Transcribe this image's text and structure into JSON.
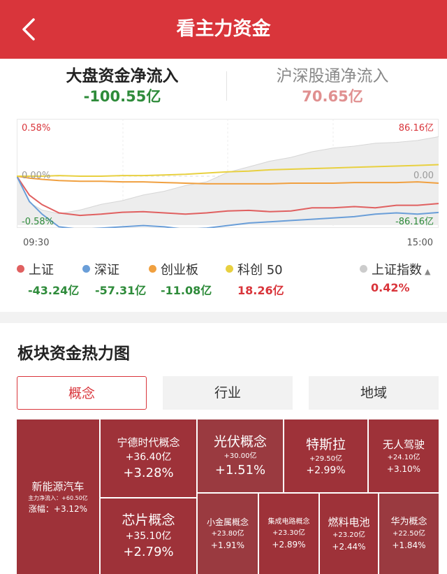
{
  "header": {
    "title": "看主力资金"
  },
  "tabs": {
    "left": {
      "label": "大盘资金净流入",
      "value": "-100.55亿"
    },
    "right": {
      "label": "沪深股通净流入",
      "value": "70.65亿"
    }
  },
  "chart_axes": {
    "left_top": "0.58%",
    "left_mid": "0.00%",
    "left_bottom": "-0.58%",
    "right_top": "86.16亿",
    "right_mid": "0.00",
    "right_bottom": "-86.16亿",
    "time_start": "09:30",
    "time_end": "15:00"
  },
  "chart_data": {
    "type": "line",
    "title": "",
    "xlabel": "",
    "ylabel": "",
    "x": [
      0,
      0.03,
      0.06,
      0.1,
      0.15,
      0.2,
      0.25,
      0.3,
      0.35,
      0.4,
      0.45,
      0.5,
      0.55,
      0.6,
      0.65,
      0.7,
      0.75,
      0.8,
      0.85,
      0.9,
      0.95,
      1.0
    ],
    "ylim_right": [
      -86.16,
      86.16
    ],
    "ylim_left": [
      -0.58,
      0.58
    ],
    "series": [
      {
        "name": "上证",
        "color": "#e06060",
        "values": [
          0,
          -30,
          -45,
          -58,
          -62,
          -60,
          -57,
          -56,
          -58,
          -60,
          -58,
          -55,
          -54,
          -56,
          -55,
          -50,
          -50,
          -48,
          -50,
          -46,
          -46,
          -43.24
        ]
      },
      {
        "name": "深证",
        "color": "#6a9ed8",
        "values": [
          0,
          -40,
          -60,
          -80,
          -84,
          -82,
          -80,
          -78,
          -80,
          -84,
          -82,
          -78,
          -74,
          -72,
          -70,
          -68,
          -66,
          -64,
          -60,
          -58,
          -60,
          -57.31
        ]
      },
      {
        "name": "创业板",
        "color": "#f0a040",
        "values": [
          0,
          -3,
          -5,
          -7,
          -8,
          -8,
          -9,
          -9,
          -10,
          -11,
          -12,
          -12,
          -12,
          -12,
          -11,
          -11,
          -11,
          -10,
          -10,
          -10,
          -9,
          -11.08
        ]
      },
      {
        "name": "科创50",
        "color": "#e8d040",
        "values": [
          0,
          0,
          0,
          1,
          0,
          0,
          1,
          1,
          2,
          3,
          5,
          7,
          8,
          10,
          11,
          12,
          13,
          14,
          15,
          16,
          17,
          18.26
        ]
      },
      {
        "name": "上证指数",
        "color": "#cccccc",
        "values": [
          0,
          -0.28,
          -0.36,
          -0.4,
          -0.36,
          -0.3,
          -0.26,
          -0.2,
          -0.16,
          -0.1,
          -0.06,
          0.04,
          0.1,
          0.16,
          0.2,
          0.26,
          0.3,
          0.32,
          0.35,
          0.36,
          0.38,
          0.42
        ]
      }
    ]
  },
  "legend": [
    {
      "name": "上证",
      "value": "-43.24亿",
      "color": "#e06060",
      "value_color": "#2e8b3a"
    },
    {
      "name": "深证",
      "value": "-57.31亿",
      "color": "#6a9ed8",
      "value_color": "#2e8b3a"
    },
    {
      "name": "创业板",
      "value": "-11.08亿",
      "color": "#f0a040",
      "value_color": "#2e8b3a"
    },
    {
      "name": "科创 50",
      "value": "18.26亿",
      "color": "#e8d040",
      "value_color": "#d9353b"
    },
    {
      "name": "上证指数",
      "value": "0.42%",
      "color": "#cccccc",
      "value_color": "#d9353b"
    }
  ],
  "heatmap": {
    "title": "板块资金热力图",
    "tabs": [
      "概念",
      "行业",
      "地域"
    ],
    "active_tab": 0,
    "tiles": [
      {
        "name": "新能源汽车",
        "sub": "主力净流入：+60.50亿",
        "amount": "",
        "pct": "涨幅：+3.12%",
        "color": "#9e3239"
      },
      {
        "name": "宁德时代概念",
        "amount": "+36.40亿",
        "pct": "+3.28%",
        "color": "#9e3239"
      },
      {
        "name": "光伏概念",
        "amount": "+30.00亿",
        "pct": "+1.51%",
        "color": "#9a3a40"
      },
      {
        "name": "特斯拉",
        "amount": "+29.50亿",
        "pct": "+2.99%",
        "color": "#9e3239"
      },
      {
        "name": "无人驾驶",
        "amount": "+24.10亿",
        "pct": "+3.10%",
        "color": "#9e3239"
      },
      {
        "name": "芯片概念",
        "amount": "+35.10亿",
        "pct": "+2.79%",
        "color": "#9e3239"
      },
      {
        "name": "小金属概念",
        "amount": "+23.80亿",
        "pct": "+1.91%",
        "color": "#9a3a40"
      },
      {
        "name": "集成电路概念",
        "amount": "+23.30亿",
        "pct": "+2.89%",
        "color": "#9e3239"
      },
      {
        "name": "燃料电池",
        "amount": "+23.20亿",
        "pct": "+2.44%",
        "color": "#9e3239"
      },
      {
        "name": "华为概念",
        "amount": "+22.50亿",
        "pct": "+1.84%",
        "color": "#9a3a40"
      }
    ]
  }
}
